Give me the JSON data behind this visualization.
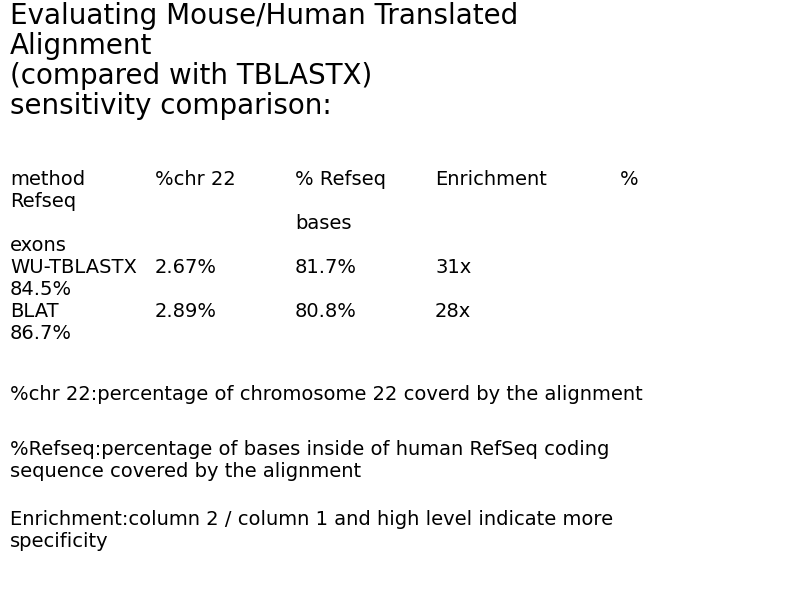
{
  "title_lines": [
    "Evaluating Mouse/Human Translated",
    "Alignment",
    "(compared with TBLASTX)",
    "sensitivity comparison:"
  ],
  "header_col1a": "method",
  "header_col1b": "Refseq",
  "header_col2": "%chr 22",
  "header_col3a": "% Refseq",
  "header_col3b": "bases",
  "header_col4": "Enrichment",
  "header_col5": "%",
  "header_col1c": "exons",
  "rows": [
    {
      "method": "WU-TBLASTX",
      "chr22": "2.67%",
      "refseq": "81.7%",
      "enrichment": "31x",
      "pct": "84.5%"
    },
    {
      "method": "BLAT",
      "chr22": "2.89%",
      "refseq": "80.8%",
      "enrichment": "28x",
      "pct": "86.7%"
    }
  ],
  "footnote1": "%chr 22:percentage of chromosome 22 coverd by the alignment",
  "footnote2a": "%Refseq:percentage of bases inside of human RefSeq coding",
  "footnote2b": "sequence covered by the alignment",
  "footnote3a": "Enrichment:column 2 / column 1 and high level indicate more",
  "footnote3b": "specificity",
  "bg_color": "#ffffff",
  "text_color": "#000000",
  "title_fontsize": 20,
  "body_fontsize": 14,
  "footnote_fontsize": 14,
  "fig_width": 7.94,
  "fig_height": 5.95,
  "dpi": 100
}
